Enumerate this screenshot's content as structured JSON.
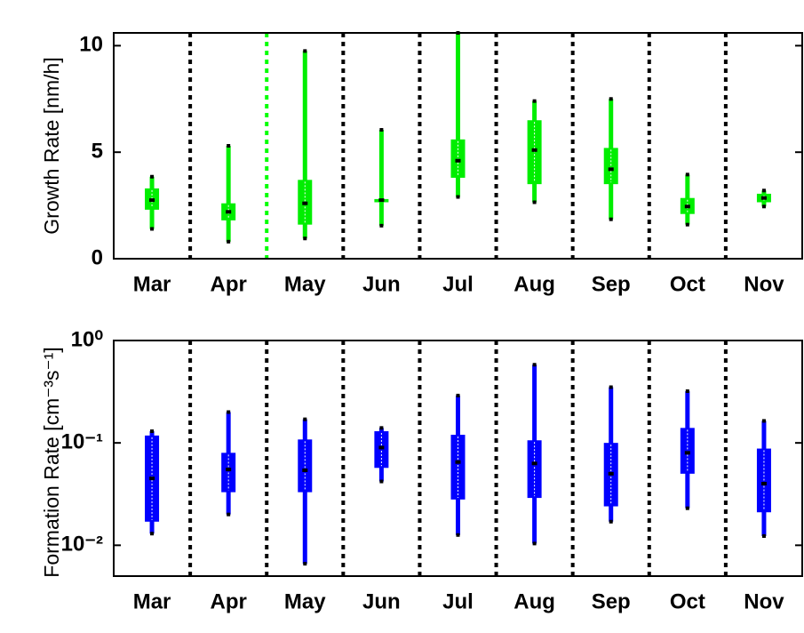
{
  "chart_data": [
    {
      "type": "box",
      "ylabel": "Growth Rate [nm/h]",
      "color": "#00ee00",
      "categories": [
        "Mar",
        "Apr",
        "May",
        "Jun",
        "Jul",
        "Aug",
        "Sep",
        "Oct",
        "Nov"
      ],
      "boxes": [
        {
          "low": 1.4,
          "q1": 2.3,
          "median": 2.75,
          "q3": 3.3,
          "high": 3.85
        },
        {
          "low": 0.8,
          "q1": 1.8,
          "median": 2.2,
          "q3": 2.6,
          "high": 5.3
        },
        {
          "low": 0.95,
          "q1": 1.6,
          "median": 2.6,
          "q3": 3.7,
          "high": 9.75
        },
        {
          "low": 1.55,
          "q1": 2.65,
          "median": 2.75,
          "q3": 2.8,
          "high": 6.05
        },
        {
          "low": 2.9,
          "q1": 3.8,
          "median": 4.6,
          "q3": 5.6,
          "high": 10.6
        },
        {
          "low": 2.65,
          "q1": 3.5,
          "median": 5.1,
          "q3": 6.5,
          "high": 7.4
        },
        {
          "low": 1.85,
          "q1": 3.5,
          "median": 4.2,
          "q3": 5.2,
          "high": 7.5
        },
        {
          "low": 1.6,
          "q1": 2.1,
          "median": 2.45,
          "q3": 2.85,
          "high": 3.95
        },
        {
          "low": 2.45,
          "q1": 2.65,
          "median": 2.85,
          "q3": 3.05,
          "high": 3.2
        }
      ],
      "ylim": [
        0,
        10.6
      ],
      "yticks": [
        0,
        5,
        10
      ],
      "log_scale": false
    },
    {
      "type": "box",
      "ylabel": "Formation Rate [cm⁻³s⁻¹]",
      "color": "#0000ff",
      "categories": [
        "Mar",
        "Apr",
        "May",
        "Jun",
        "Jul",
        "Aug",
        "Sep",
        "Oct",
        "Nov"
      ],
      "boxes": [
        {
          "low": 0.013,
          "q1": 0.017,
          "median": 0.045,
          "q3": 0.118,
          "high": 0.13
        },
        {
          "low": 0.02,
          "q1": 0.033,
          "median": 0.055,
          "q3": 0.08,
          "high": 0.2
        },
        {
          "low": 0.0066,
          "q1": 0.033,
          "median": 0.054,
          "q3": 0.108,
          "high": 0.17
        },
        {
          "low": 0.042,
          "q1": 0.057,
          "median": 0.09,
          "q3": 0.13,
          "high": 0.14
        },
        {
          "low": 0.0126,
          "q1": 0.028,
          "median": 0.065,
          "q3": 0.12,
          "high": 0.29
        },
        {
          "low": 0.0104,
          "q1": 0.029,
          "median": 0.063,
          "q3": 0.106,
          "high": 0.58
        },
        {
          "low": 0.017,
          "q1": 0.024,
          "median": 0.05,
          "q3": 0.1,
          "high": 0.35
        },
        {
          "low": 0.023,
          "q1": 0.05,
          "median": 0.08,
          "q3": 0.14,
          "high": 0.32
        },
        {
          "low": 0.0123,
          "q1": 0.021,
          "median": 0.04,
          "q3": 0.088,
          "high": 0.164
        }
      ],
      "ylim": [
        0.005,
        1
      ],
      "yticks": [
        {
          "value": 0.01,
          "label": "10⁻²"
        },
        {
          "value": 0.1,
          "label": "10⁻¹"
        },
        {
          "value": 1,
          "label": "10⁰"
        }
      ],
      "log_scale": true
    }
  ]
}
